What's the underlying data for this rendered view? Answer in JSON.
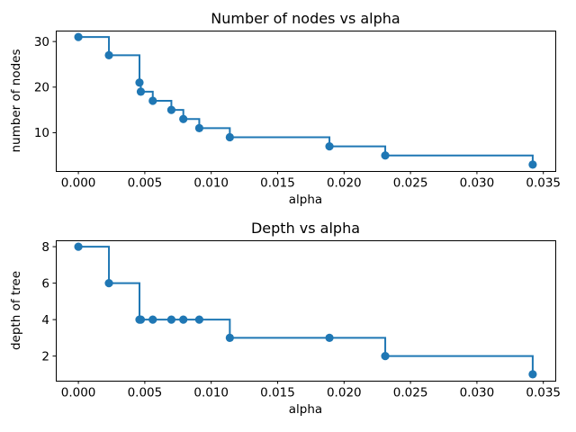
{
  "figure": {
    "background_color": "#ffffff",
    "accent_color": "#1f77b4",
    "text_color": "#000000"
  },
  "chart_data": [
    {
      "type": "line",
      "drawstyle": "steps-post",
      "marker": "circle",
      "line_color": "#1f77b4",
      "grid": false,
      "legend": "none",
      "title": "Number of nodes vs alpha",
      "xlabel": "alpha",
      "ylabel": "number of nodes",
      "x": [
        0.0,
        0.0023,
        0.0046,
        0.0047,
        0.0056,
        0.007,
        0.0079,
        0.0091,
        0.0114,
        0.0189,
        0.0231,
        0.0342
      ],
      "y": [
        31,
        27,
        21,
        19,
        17,
        15,
        13,
        11,
        9,
        7,
        5,
        3
      ],
      "xlim": [
        -0.0017,
        0.0359
      ],
      "ylim": [
        1.6,
        32.4
      ],
      "xticks": [
        0.0,
        0.005,
        0.01,
        0.015,
        0.02,
        0.025,
        0.03,
        0.035
      ],
      "xtick_labels": [
        "0.000",
        "0.005",
        "0.010",
        "0.015",
        "0.020",
        "0.025",
        "0.030",
        "0.035"
      ],
      "yticks": [
        10,
        20,
        30
      ],
      "ytick_labels": [
        "10",
        "20",
        "30"
      ]
    },
    {
      "type": "line",
      "drawstyle": "steps-post",
      "marker": "circle",
      "line_color": "#1f77b4",
      "grid": false,
      "legend": "none",
      "title": "Depth vs alpha",
      "xlabel": "alpha",
      "ylabel": "depth of tree",
      "x": [
        0.0,
        0.0023,
        0.0046,
        0.0047,
        0.0056,
        0.007,
        0.0079,
        0.0091,
        0.0114,
        0.0189,
        0.0231,
        0.0342
      ],
      "y": [
        8,
        6,
        4,
        4,
        4,
        4,
        4,
        4,
        3,
        3,
        2,
        1
      ],
      "xlim": [
        -0.0017,
        0.0359
      ],
      "ylim": [
        0.65,
        8.35
      ],
      "xticks": [
        0.0,
        0.005,
        0.01,
        0.015,
        0.02,
        0.025,
        0.03,
        0.035
      ],
      "xtick_labels": [
        "0.000",
        "0.005",
        "0.010",
        "0.015",
        "0.020",
        "0.025",
        "0.030",
        "0.035"
      ],
      "yticks": [
        2,
        4,
        6,
        8
      ],
      "ytick_labels": [
        "2",
        "4",
        "6",
        "8"
      ]
    }
  ]
}
